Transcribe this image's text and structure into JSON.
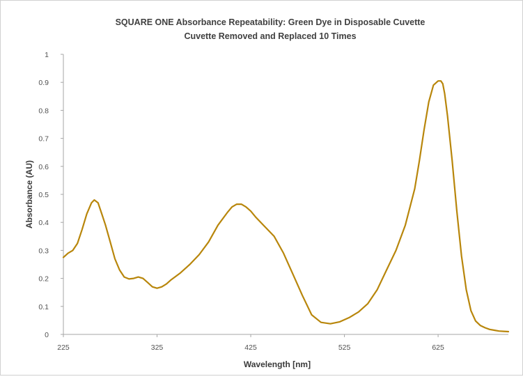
{
  "chart_data": {
    "type": "line",
    "title": "SQUARE ONE Absorbance Repeatability: Green Dye in Disposable Cuvette",
    "subtitle": "Cuvette Removed and Replaced 10 Times",
    "xlabel": "Wavelength [nm]",
    "ylabel": "Absorbance (AU)",
    "xlim": [
      225,
      700
    ],
    "ylim": [
      0,
      1
    ],
    "x_ticks": [
      "225",
      "325",
      "425",
      "525",
      "625"
    ],
    "y_ticks": [
      "0",
      "0.1",
      "0.2",
      "0.3",
      "0.4",
      "0.5",
      "0.6",
      "0.7",
      "0.8",
      "0.9",
      "1"
    ],
    "grid": false,
    "legend": "none",
    "series": [
      {
        "color": "#b8860b",
        "x": [
          225,
          230,
          235,
          240,
          245,
          250,
          255,
          258,
          262,
          266,
          270,
          275,
          280,
          285,
          290,
          295,
          300,
          305,
          310,
          315,
          320,
          325,
          330,
          335,
          340,
          350,
          360,
          370,
          380,
          390,
          400,
          405,
          410,
          415,
          420,
          425,
          430,
          440,
          450,
          460,
          470,
          480,
          490,
          500,
          510,
          520,
          530,
          540,
          550,
          560,
          570,
          580,
          590,
          600,
          605,
          610,
          615,
          620,
          625,
          628,
          630,
          632,
          635,
          640,
          645,
          650,
          655,
          660,
          665,
          670,
          675,
          680,
          685,
          690,
          695,
          700
        ],
        "y": [
          0.275,
          0.29,
          0.3,
          0.325,
          0.375,
          0.43,
          0.47,
          0.48,
          0.47,
          0.43,
          0.39,
          0.33,
          0.27,
          0.23,
          0.205,
          0.198,
          0.2,
          0.205,
          0.2,
          0.185,
          0.17,
          0.165,
          0.17,
          0.18,
          0.195,
          0.22,
          0.25,
          0.285,
          0.33,
          0.39,
          0.435,
          0.455,
          0.465,
          0.465,
          0.455,
          0.44,
          0.42,
          0.385,
          0.35,
          0.29,
          0.215,
          0.14,
          0.07,
          0.043,
          0.038,
          0.045,
          0.06,
          0.08,
          0.11,
          0.16,
          0.23,
          0.3,
          0.39,
          0.52,
          0.62,
          0.73,
          0.83,
          0.89,
          0.905,
          0.905,
          0.895,
          0.86,
          0.78,
          0.62,
          0.44,
          0.28,
          0.16,
          0.085,
          0.048,
          0.032,
          0.024,
          0.018,
          0.015,
          0.012,
          0.011,
          0.01
        ]
      }
    ]
  }
}
